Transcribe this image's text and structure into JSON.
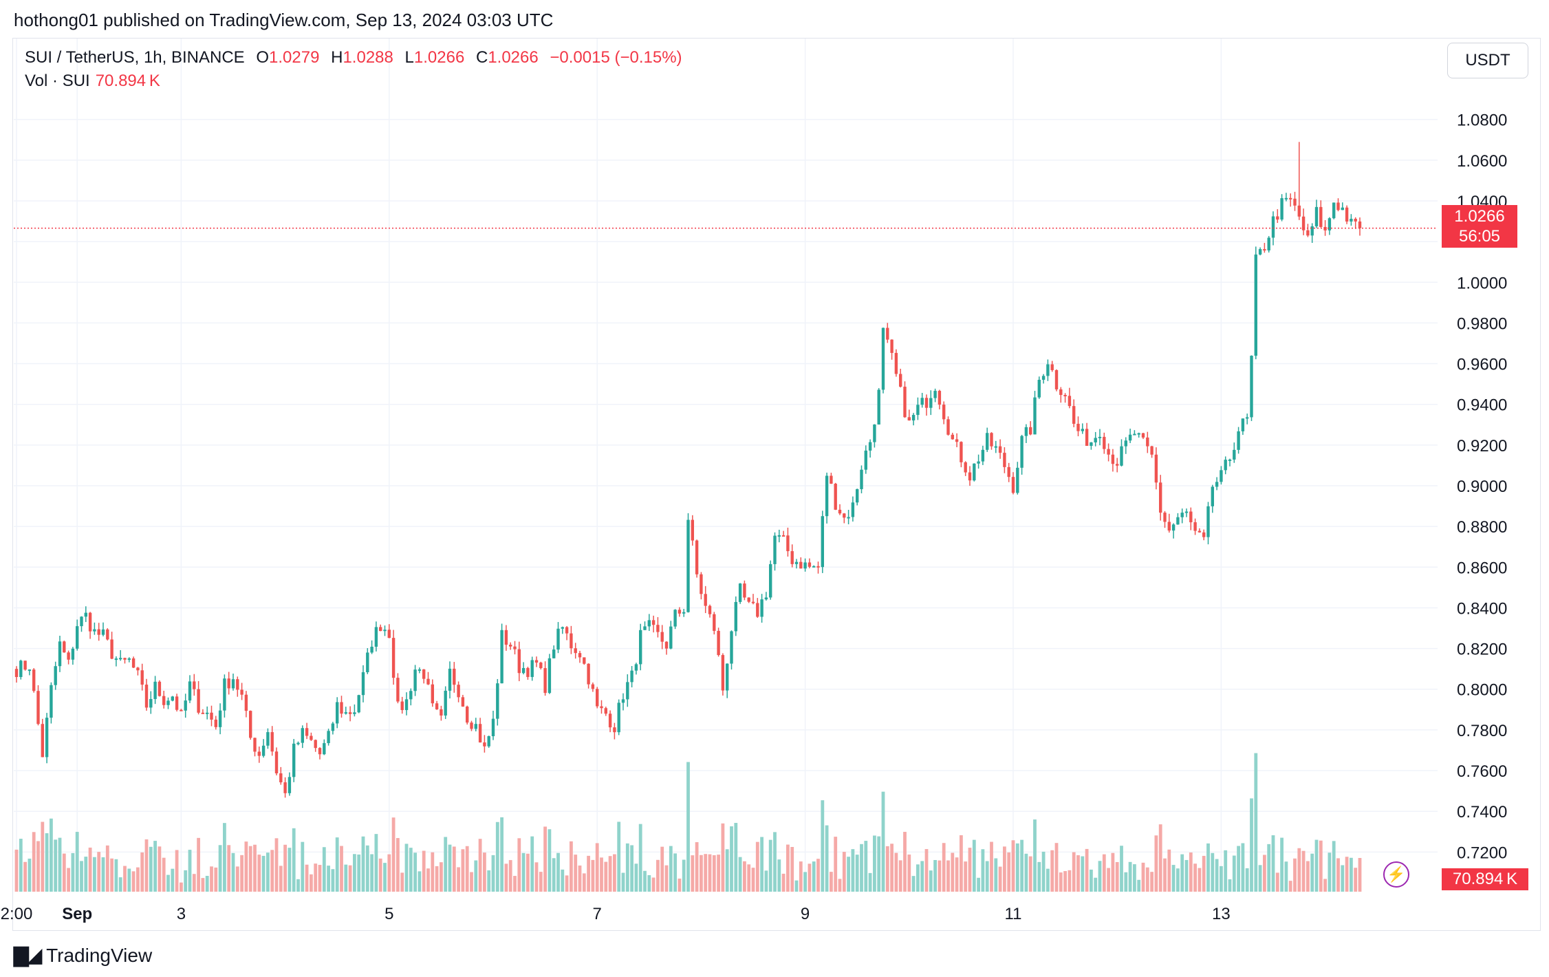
{
  "header": {
    "publisher_line": "hothong01 published on TradingView.com, Sep 13, 2024 03:03 UTC"
  },
  "legend": {
    "symbol": "SUI / TetherUS, 1h, BINANCE",
    "open_label": "O",
    "open": "1.0279",
    "high_label": "H",
    "high": "1.0288",
    "low_label": "L",
    "low": "1.0266",
    "close_label": "C",
    "close": "1.0266",
    "change": "−0.0015 (−0.15%)",
    "vol_label": "Vol · SUI",
    "vol_value": "70.894 K"
  },
  "currency": "USDT",
  "price_tag": {
    "price": "1.0266",
    "countdown": "56:05"
  },
  "volume_tag": "70.894 K",
  "footer": {
    "brand": "TradingView",
    "logo_icon": "tradingview-logo-icon"
  },
  "colors": {
    "up": "#26a69a",
    "down": "#ef5350",
    "up_vol": "#8fd3cb",
    "down_vol": "#f5a9a7",
    "grid": "#f0f3fa",
    "price_line": "#f23645"
  },
  "chart_data": {
    "type": "candlestick",
    "ylim": [
      0.712,
      1.088
    ],
    "y_ticks": [
      "1.0800",
      "1.0600",
      "1.0400",
      "1.0200",
      "1.0000",
      "0.9800",
      "0.9600",
      "0.9400",
      "0.9200",
      "0.9000",
      "0.8800",
      "0.8600",
      "0.8400",
      "0.8200",
      "0.8000",
      "0.7800",
      "0.7600",
      "0.7400",
      "0.7200"
    ],
    "x_ticks": [
      {
        "label": "2:00",
        "t": 0,
        "bold": false
      },
      {
        "label": "Sep",
        "t": 14,
        "bold": true
      },
      {
        "label": "3",
        "t": 38,
        "bold": false
      },
      {
        "label": "5",
        "t": 86,
        "bold": false
      },
      {
        "label": "7",
        "t": 134,
        "bold": false
      },
      {
        "label": "9",
        "t": 182,
        "bold": false
      },
      {
        "label": "11",
        "t": 230,
        "bold": false
      },
      {
        "label": "13",
        "t": 278,
        "bold": false
      }
    ],
    "last_price": 1.0266,
    "series": [
      {
        "name": "SUI / TetherUS",
        "anchors": [
          [
            0,
            0.81
          ],
          [
            3,
            0.812
          ],
          [
            6,
            0.768
          ],
          [
            8,
            0.8
          ],
          [
            10,
            0.822
          ],
          [
            12,
            0.812
          ],
          [
            14,
            0.832
          ],
          [
            16,
            0.836
          ],
          [
            18,
            0.828
          ],
          [
            20,
            0.826
          ],
          [
            22,
            0.818
          ],
          [
            24,
            0.812
          ],
          [
            26,
            0.814
          ],
          [
            28,
            0.806
          ],
          [
            30,
            0.792
          ],
          [
            32,
            0.801
          ],
          [
            34,
            0.795
          ],
          [
            36,
            0.797
          ],
          [
            38,
            0.786
          ],
          [
            40,
            0.802
          ],
          [
            42,
            0.792
          ],
          [
            44,
            0.788
          ],
          [
            46,
            0.782
          ],
          [
            48,
            0.802
          ],
          [
            50,
            0.806
          ],
          [
            52,
            0.796
          ],
          [
            54,
            0.776
          ],
          [
            56,
            0.768
          ],
          [
            58,
            0.78
          ],
          [
            60,
            0.76
          ],
          [
            62,
            0.748
          ],
          [
            64,
            0.77
          ],
          [
            66,
            0.778
          ],
          [
            68,
            0.774
          ],
          [
            70,
            0.768
          ],
          [
            72,
            0.776
          ],
          [
            74,
            0.792
          ],
          [
            76,
            0.788
          ],
          [
            78,
            0.79
          ],
          [
            80,
            0.806
          ],
          [
            82,
            0.824
          ],
          [
            84,
            0.832
          ],
          [
            86,
            0.828
          ],
          [
            88,
            0.79
          ],
          [
            90,
            0.794
          ],
          [
            92,
            0.81
          ],
          [
            94,
            0.808
          ],
          [
            96,
            0.79
          ],
          [
            98,
            0.784
          ],
          [
            100,
            0.808
          ],
          [
            102,
            0.8
          ],
          [
            104,
            0.787
          ],
          [
            106,
            0.782
          ],
          [
            108,
            0.77
          ],
          [
            110,
            0.784
          ],
          [
            112,
            0.826
          ],
          [
            114,
            0.822
          ],
          [
            116,
            0.811
          ],
          [
            118,
            0.81
          ],
          [
            120,
            0.812
          ],
          [
            122,
            0.802
          ],
          [
            124,
            0.822
          ],
          [
            126,
            0.83
          ],
          [
            128,
            0.822
          ],
          [
            130,
            0.818
          ],
          [
            132,
            0.806
          ],
          [
            134,
            0.79
          ],
          [
            136,
            0.788
          ],
          [
            138,
            0.782
          ],
          [
            140,
            0.798
          ],
          [
            142,
            0.806
          ],
          [
            144,
            0.826
          ],
          [
            146,
            0.83
          ],
          [
            148,
            0.826
          ],
          [
            150,
            0.822
          ],
          [
            152,
            0.836
          ],
          [
            154,
            0.84
          ],
          [
            155,
            0.884
          ],
          [
            157,
            0.856
          ],
          [
            159,
            0.84
          ],
          [
            161,
            0.83
          ],
          [
            163,
            0.8
          ],
          [
            165,
            0.83
          ],
          [
            167,
            0.848
          ],
          [
            169,
            0.84
          ],
          [
            171,
            0.838
          ],
          [
            173,
            0.848
          ],
          [
            175,
            0.875
          ],
          [
            177,
            0.872
          ],
          [
            179,
            0.864
          ],
          [
            181,
            0.862
          ],
          [
            183,
            0.86
          ],
          [
            185,
            0.86
          ],
          [
            187,
            0.906
          ],
          [
            189,
            0.892
          ],
          [
            191,
            0.884
          ],
          [
            193,
            0.89
          ],
          [
            195,
            0.91
          ],
          [
            197,
            0.922
          ],
          [
            199,
            0.945
          ],
          [
            200,
            0.975
          ],
          [
            202,
            0.962
          ],
          [
            204,
            0.945
          ],
          [
            206,
            0.93
          ],
          [
            208,
            0.938
          ],
          [
            210,
            0.942
          ],
          [
            212,
            0.95
          ],
          [
            214,
            0.936
          ],
          [
            216,
            0.922
          ],
          [
            218,
            0.914
          ],
          [
            220,
            0.905
          ],
          [
            222,
            0.914
          ],
          [
            224,
            0.922
          ],
          [
            226,
            0.918
          ],
          [
            228,
            0.91
          ],
          [
            230,
            0.9
          ],
          [
            232,
            0.922
          ],
          [
            234,
            0.928
          ],
          [
            236,
            0.952
          ],
          [
            238,
            0.962
          ],
          [
            240,
            0.95
          ],
          [
            242,
            0.946
          ],
          [
            244,
            0.93
          ],
          [
            246,
            0.924
          ],
          [
            248,
            0.922
          ],
          [
            250,
            0.928
          ],
          [
            252,
            0.916
          ],
          [
            254,
            0.912
          ],
          [
            256,
            0.92
          ],
          [
            258,
            0.926
          ],
          [
            260,
            0.92
          ],
          [
            262,
            0.914
          ],
          [
            264,
            0.888
          ],
          [
            266,
            0.878
          ],
          [
            268,
            0.884
          ],
          [
            270,
            0.886
          ],
          [
            272,
            0.876
          ],
          [
            274,
            0.872
          ],
          [
            276,
            0.9
          ],
          [
            278,
            0.904
          ],
          [
            280,
            0.914
          ],
          [
            282,
            0.928
          ],
          [
            284,
            0.932
          ],
          [
            285,
            0.962
          ],
          [
            286,
            1.01
          ],
          [
            288,
            1.018
          ],
          [
            290,
            1.03
          ],
          [
            292,
            1.038
          ],
          [
            294,
            1.04
          ],
          [
            296,
            1.032
          ],
          [
            298,
            1.02
          ],
          [
            300,
            1.034
          ],
          [
            302,
            1.024
          ],
          [
            304,
            1.04
          ],
          [
            306,
            1.036
          ],
          [
            308,
            1.028
          ],
          [
            310,
            1.0266
          ]
        ]
      }
    ],
    "volume": {
      "unit": "K",
      "last": 70.894
    }
  }
}
